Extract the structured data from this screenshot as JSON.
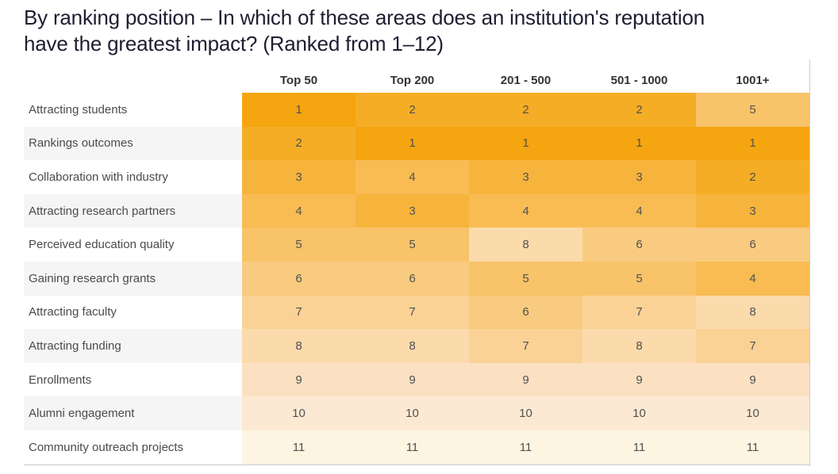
{
  "header": {
    "title_line1": "By ranking position – In which of these areas does an institution's reputation",
    "title_line2": "have the greatest impact? (Ranked from 1–12)"
  },
  "chart_data": {
    "type": "heatmap",
    "title": "By ranking position – In which of these areas does an institution's reputation have the greatest impact? (Ranked from 1–12)",
    "columns": [
      "Top 50",
      "Top 200",
      "201 - 500",
      "501 - 1000",
      "1001+"
    ],
    "rows": [
      {
        "label": "Attracting students",
        "values": [
          1,
          2,
          2,
          2,
          5
        ]
      },
      {
        "label": "Rankings outcomes",
        "values": [
          2,
          1,
          1,
          1,
          1
        ]
      },
      {
        "label": "Collaboration with industry",
        "values": [
          3,
          4,
          3,
          3,
          2
        ]
      },
      {
        "label": "Attracting research partners",
        "values": [
          4,
          3,
          4,
          4,
          3
        ]
      },
      {
        "label": "Perceived education quality",
        "values": [
          5,
          5,
          8,
          6,
          6
        ]
      },
      {
        "label": "Gaining research grants",
        "values": [
          6,
          6,
          5,
          5,
          4
        ]
      },
      {
        "label": "Attracting faculty",
        "values": [
          7,
          7,
          6,
          7,
          8
        ]
      },
      {
        "label": "Attracting funding",
        "values": [
          8,
          8,
          7,
          8,
          7
        ]
      },
      {
        "label": "Enrollments",
        "values": [
          9,
          9,
          9,
          9,
          9
        ]
      },
      {
        "label": "Alumni engagement",
        "values": [
          10,
          10,
          10,
          10,
          10
        ]
      },
      {
        "label": "Community outreach projects",
        "values": [
          11,
          11,
          11,
          11,
          11
        ]
      }
    ],
    "value_scale": {
      "min": 1,
      "max": 11,
      "meaning": "rank (1 = greatest impact)"
    },
    "palette": {
      "1": "#F5A50F",
      "2": "#F6AD26",
      "3": "#F7B43C",
      "4": "#F8BC53",
      "5": "#F8C369",
      "6": "#F9CB80",
      "7": "#FAD296",
      "8": "#FBDAAC",
      "9": "#FBE1C2",
      "10": "#FCE9D3",
      "11": "#FDF4E2"
    },
    "layout": {
      "zebra_stripe_color": "#f5f5f5",
      "border_color": "#cccccc",
      "legend": "none",
      "grid": "off"
    }
  }
}
